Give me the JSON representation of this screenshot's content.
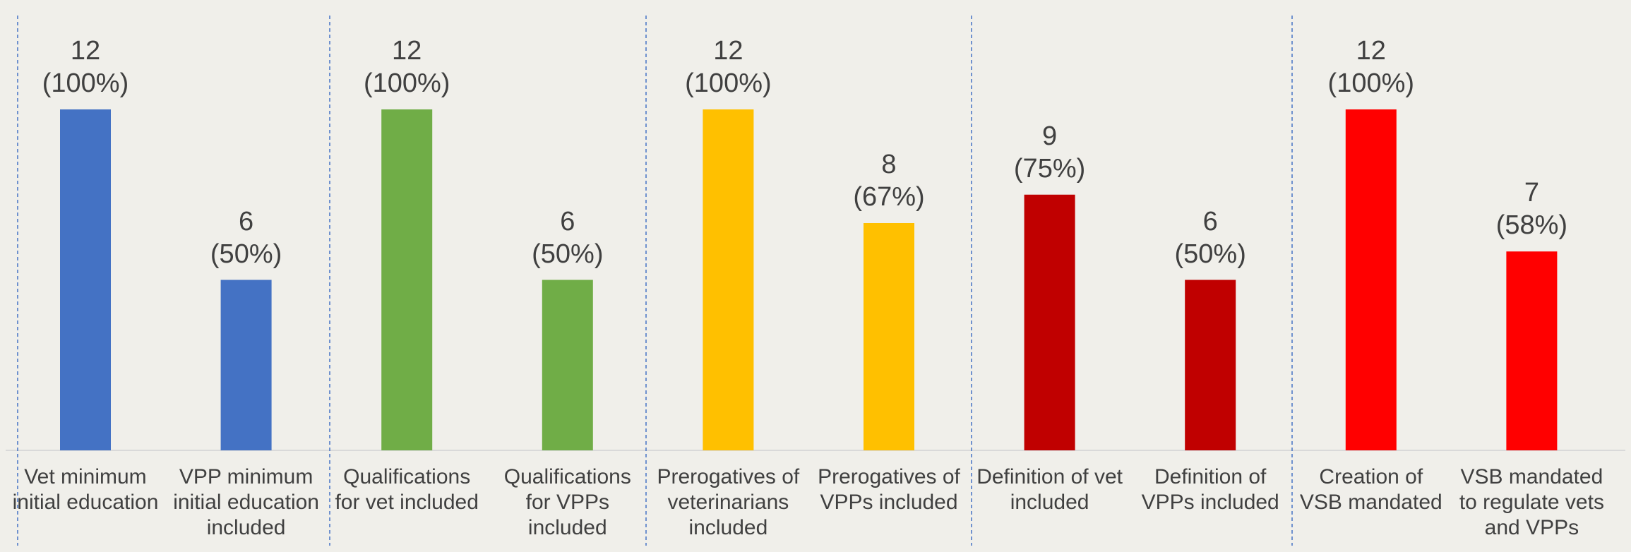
{
  "chart_data": {
    "type": "bar",
    "categories": [
      "Vet minimum\ninitial education",
      "VPP minimum\ninitial education\nincluded",
      "Qualifications\nfor vet included",
      "Qualifications\nfor VPPs\nincluded",
      "Prerogatives of\nveterinarians\nincluded",
      "Prerogatives of\nVPPs included",
      "Definition of vet\nincluded",
      "Definition of\nVPPs included",
      "Creation of\nVSB mandated",
      "VSB mandated\nto regulate vets\nand VPPs"
    ],
    "values": [
      12,
      6,
      12,
      6,
      12,
      8,
      9,
      6,
      12,
      7
    ],
    "value_labels": [
      "12\n(100%)",
      "6\n(50%)",
      "12\n(100%)",
      "6\n(50%)",
      "12\n(100%)",
      "8\n(67%)",
      "9\n(75%)",
      "6\n(50%)",
      "12\n(100%)",
      "7\n(58%)"
    ],
    "colors": [
      "#4472c4",
      "#4472c4",
      "#70ad47",
      "#70ad47",
      "#ffc000",
      "#ffc000",
      "#c00000",
      "#c00000",
      "#ff0000",
      "#ff0000"
    ],
    "ylim": [
      0,
      12
    ]
  }
}
